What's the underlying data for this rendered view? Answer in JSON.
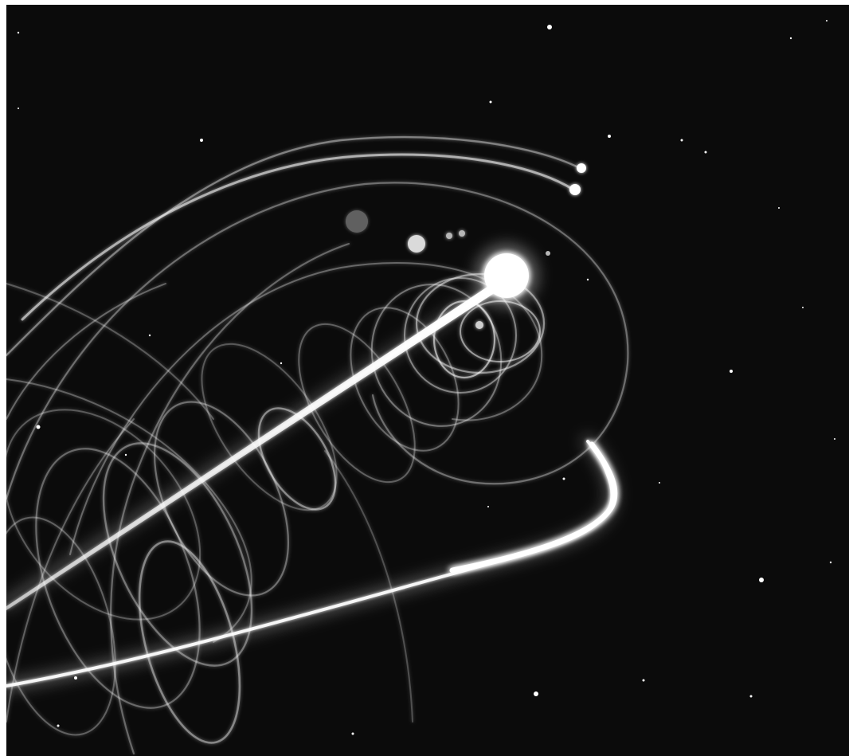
{
  "image": {
    "subject": "long-exposure-orbit-trails",
    "palette": {
      "background": "#0b0b0b",
      "frame": "#ffffff",
      "trail": "#ffffff",
      "star": "#ffffff"
    }
  }
}
